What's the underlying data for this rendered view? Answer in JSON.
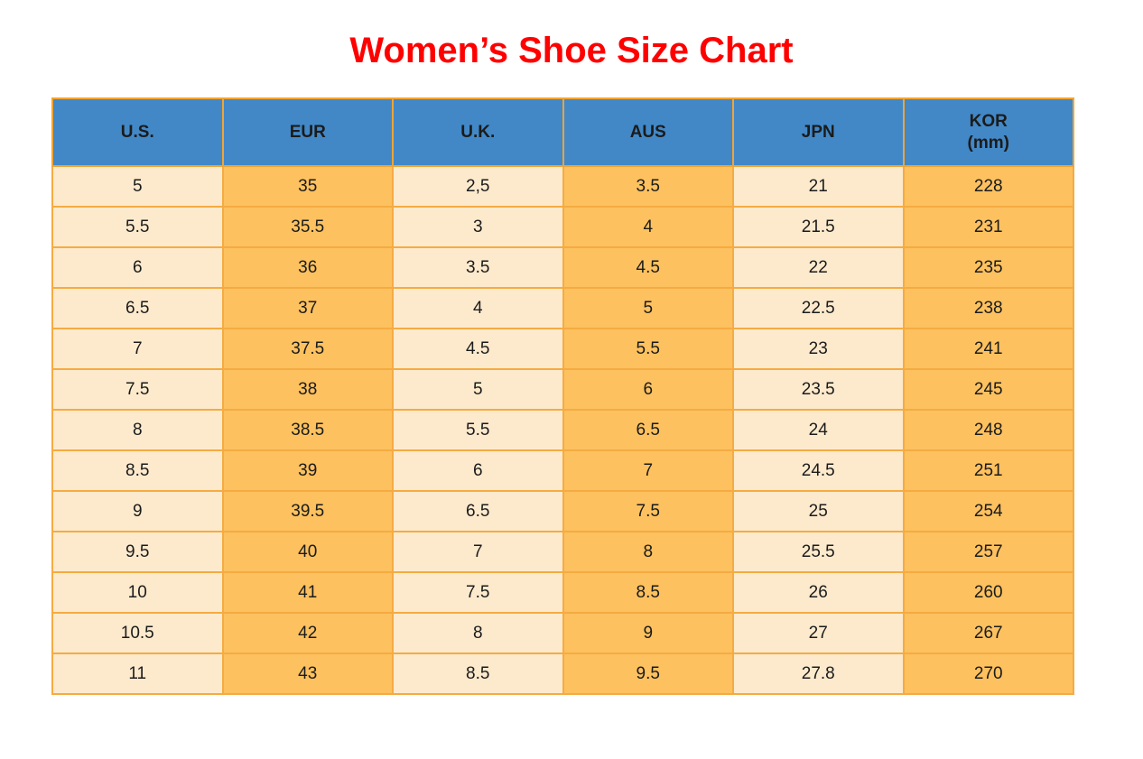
{
  "title": "Women’s Shoe Size Chart",
  "colors": {
    "title_text": "#FE0000",
    "header_bg": "#4288C7",
    "cell_cream": "#FDEACD",
    "cell_orange": "#FDC15F",
    "grid_border": "#F2A433",
    "cell_text": "#1B1B1B"
  },
  "chart_data": {
    "type": "table",
    "title": "Women’s Shoe Size Chart",
    "headers": [
      {
        "label": "U.S."
      },
      {
        "label": "EUR"
      },
      {
        "label": "U.K."
      },
      {
        "label": "AUS"
      },
      {
        "label": "JPN"
      },
      {
        "label": "KOR",
        "sublabel": "(mm)"
      }
    ],
    "rows": [
      [
        "5",
        "35",
        "2,5",
        "3.5",
        "21",
        "228"
      ],
      [
        "5.5",
        "35.5",
        "3",
        "4",
        "21.5",
        "231"
      ],
      [
        "6",
        "36",
        "3.5",
        "4.5",
        "22",
        "235"
      ],
      [
        "6.5",
        "37",
        "4",
        "5",
        "22.5",
        "238"
      ],
      [
        "7",
        "37.5",
        "4.5",
        "5.5",
        "23",
        "241"
      ],
      [
        "7.5",
        "38",
        "5",
        "6",
        "23.5",
        "245"
      ],
      [
        "8",
        "38.5",
        "5.5",
        "6.5",
        "24",
        "248"
      ],
      [
        "8.5",
        "39",
        "6",
        "7",
        "24.5",
        "251"
      ],
      [
        "9",
        "39.5",
        "6.5",
        "7.5",
        "25",
        "254"
      ],
      [
        "9.5",
        "40",
        "7",
        "8",
        "25.5",
        "257"
      ],
      [
        "10",
        "41",
        "7.5",
        "8.5",
        "26",
        "260"
      ],
      [
        "10.5",
        "42",
        "8",
        "9",
        "27",
        "267"
      ],
      [
        "11",
        "43",
        "8.5",
        "9.5",
        "27.8",
        "270"
      ]
    ],
    "column_keys": [
      "us",
      "eur",
      "uk",
      "aus",
      "jpn",
      "kor"
    ]
  }
}
